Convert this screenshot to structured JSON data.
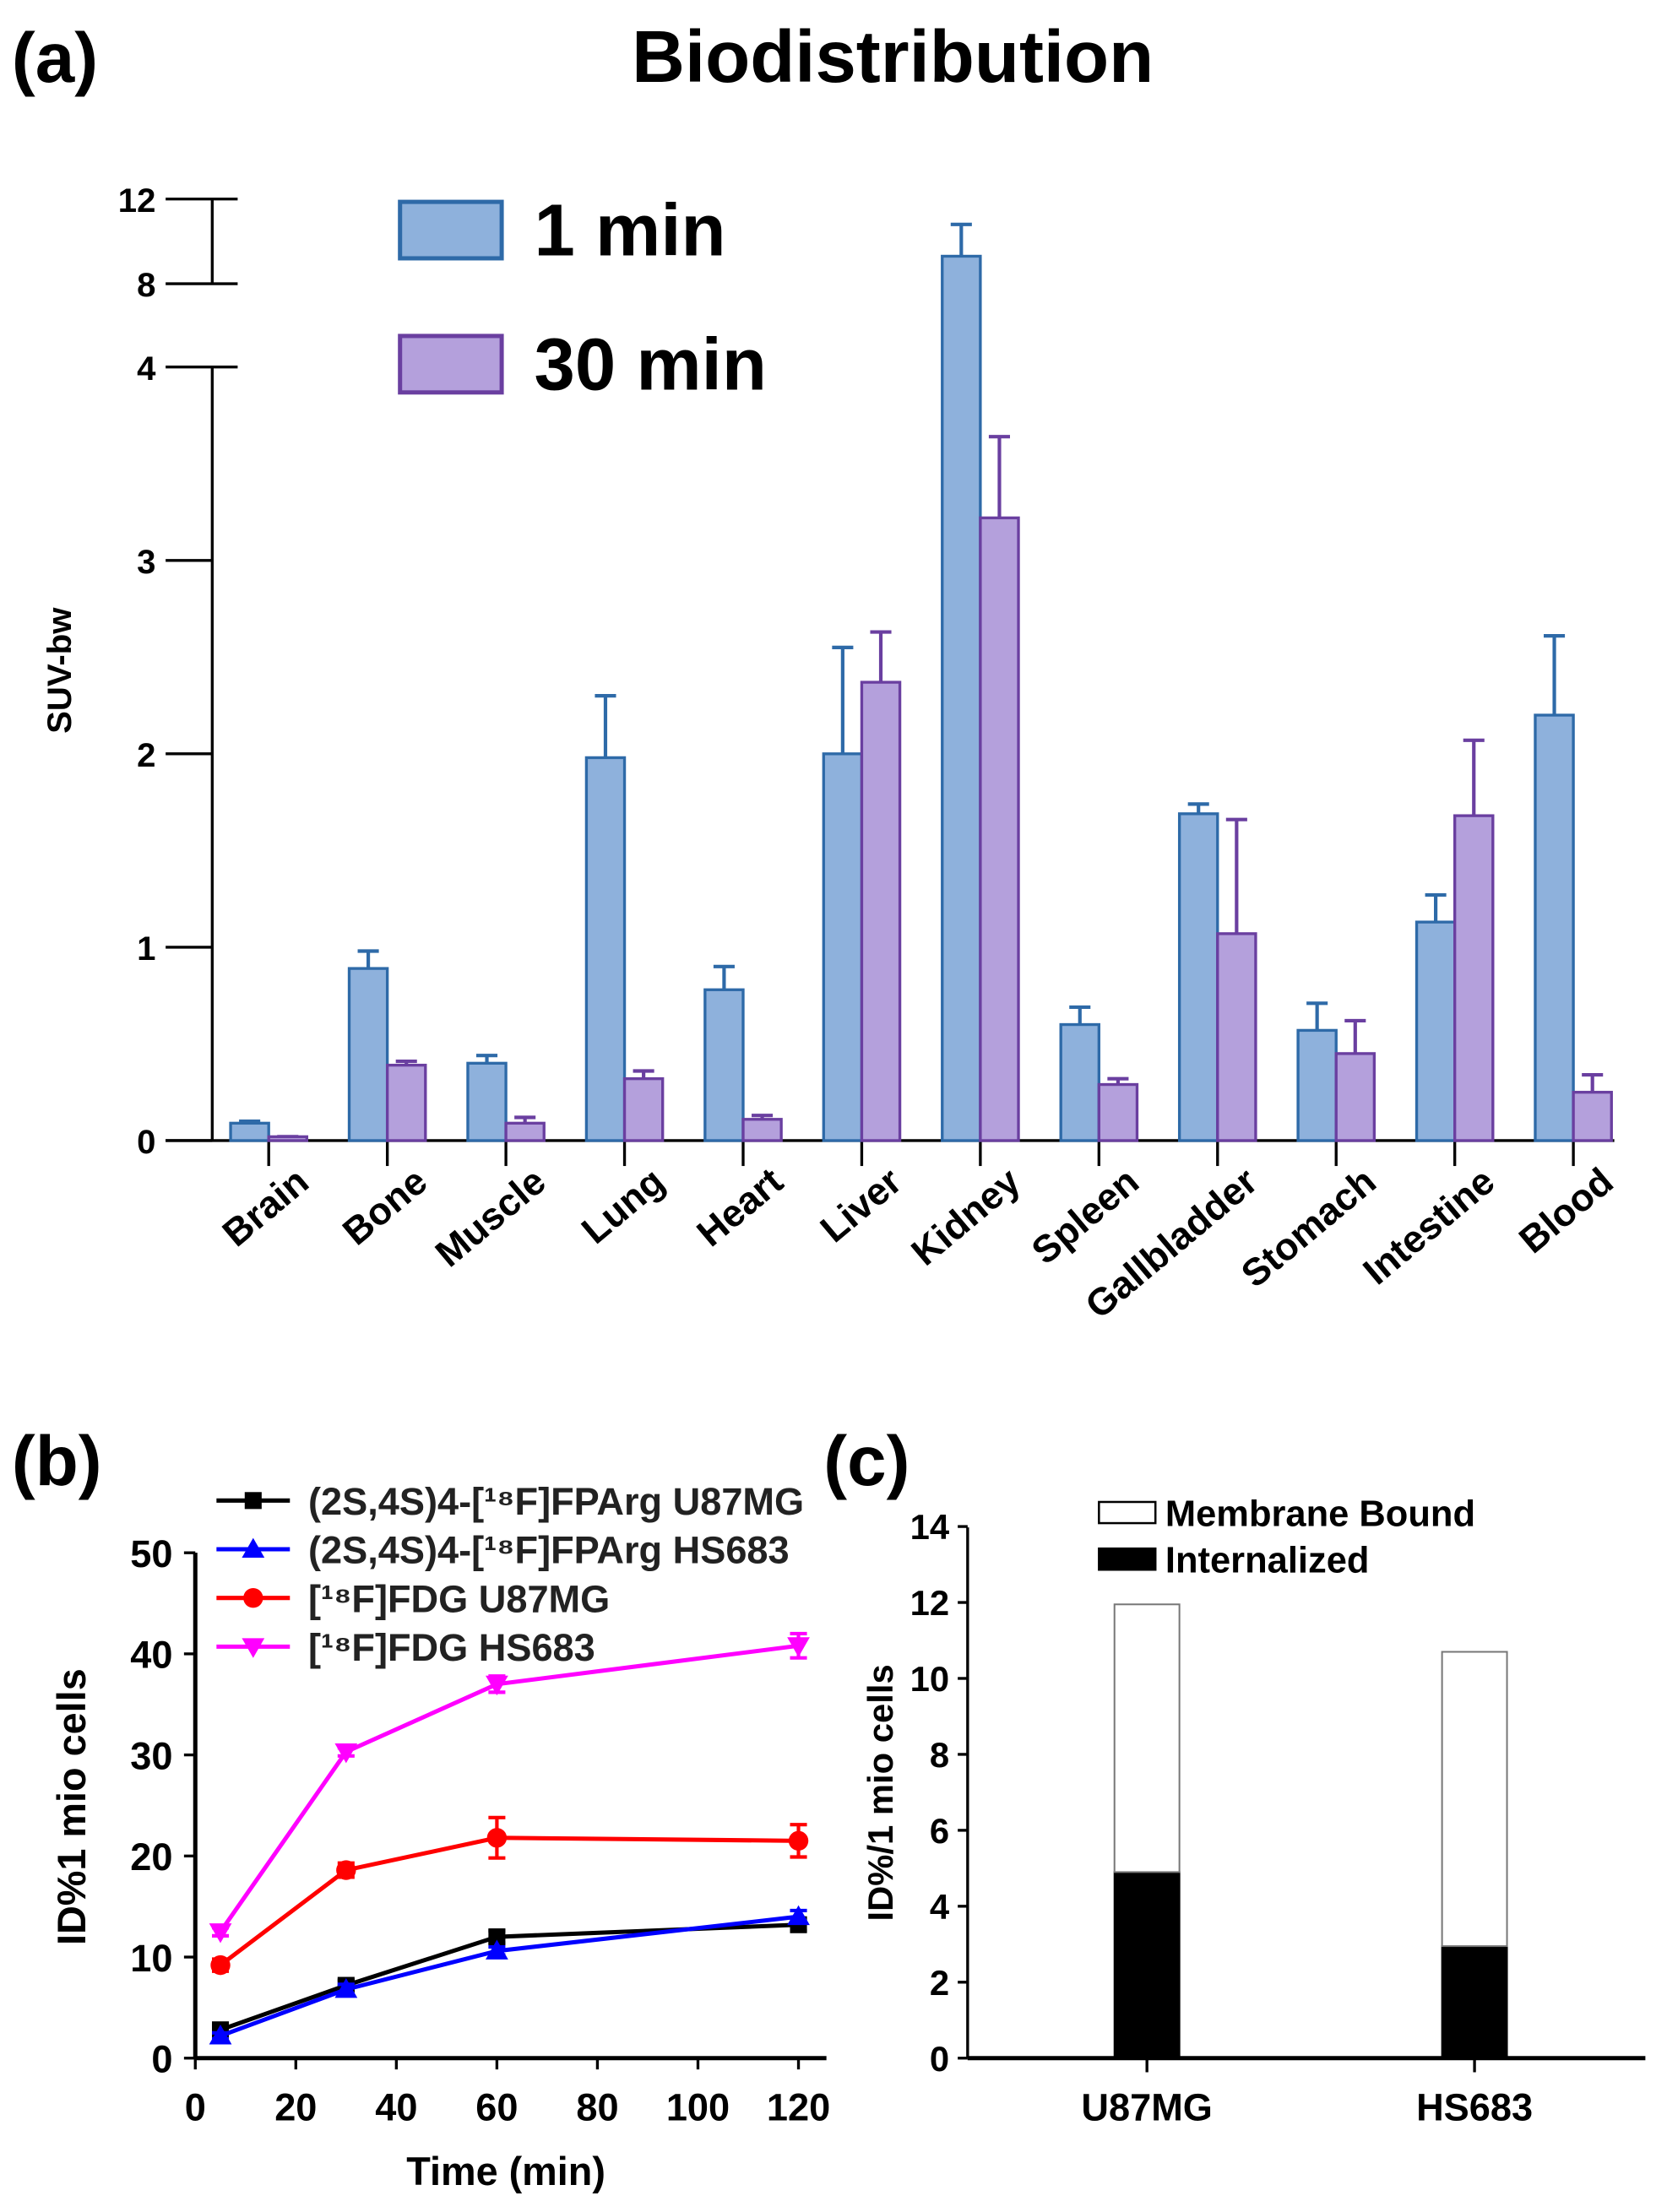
{
  "chart_data": [
    {
      "panel_label": "(a)",
      "type": "bar",
      "title": "Biodistribution",
      "ylabel": "SUV-bw",
      "xlabel": "",
      "y_ticks": [
        "0",
        "1",
        "2",
        "3",
        "4",
        "8",
        "12"
      ],
      "ylim_lower": [
        0,
        4
      ],
      "ylim_upper": [
        8,
        12
      ],
      "axis_break": [
        4,
        8
      ],
      "legend_position": "top-left",
      "categories": [
        "Brain",
        "Bone",
        "Muscle",
        "Lung",
        "Heart",
        "Liver",
        "Kidney",
        "Spleen",
        "Gallbladder",
        "Stomach",
        "Intestine",
        "Blood"
      ],
      "series": [
        {
          "name": "1 min",
          "color": "#8eb1dc",
          "edge": "#2e6aa8",
          "values": [
            0.09,
            0.89,
            0.4,
            1.98,
            0.78,
            2.0,
            9.3,
            0.6,
            1.69,
            0.57,
            1.13,
            2.2
          ],
          "error_upper": [
            0.1,
            0.98,
            0.44,
            2.3,
            0.9,
            2.55,
            10.8,
            0.69,
            1.74,
            0.71,
            1.27,
            2.61
          ]
        },
        {
          "name": "30 min",
          "color": "#b4a0dc",
          "edge": "#6a3fa0",
          "values": [
            0.02,
            0.39,
            0.09,
            0.32,
            0.11,
            2.37,
            3.22,
            0.29,
            1.07,
            0.45,
            1.68,
            0.25
          ],
          "error_upper": [
            0.02,
            0.41,
            0.12,
            0.36,
            0.13,
            2.63,
            3.64,
            0.32,
            1.66,
            0.62,
            2.07,
            0.34
          ]
        }
      ]
    },
    {
      "panel_label": "(b)",
      "type": "line",
      "xlabel": "Time (min)",
      "ylabel": "ID%1 mio cells",
      "xlim": [
        0,
        120
      ],
      "ylim": [
        0,
        50
      ],
      "x_ticks": [
        "0",
        "20",
        "40",
        "60",
        "80",
        "100",
        "120"
      ],
      "y_ticks": [
        "0",
        "10",
        "20",
        "30",
        "40",
        "50"
      ],
      "legend_position": "top-left",
      "x": [
        5,
        30,
        60,
        120
      ],
      "series": [
        {
          "name": "(2S,4S)4-[¹⁸F]FPArg U87MG",
          "color": "#000000",
          "marker": "square",
          "values": [
            2.8,
            7.2,
            12.0,
            13.2
          ],
          "error": [
            0.4,
            0.5,
            0.6,
            0.6
          ]
        },
        {
          "name": "(2S,4S)4-[¹⁸F]FPArg HS683",
          "color": "#0000ff",
          "marker": "triangle-up",
          "values": [
            2.2,
            6.8,
            10.6,
            14.0
          ],
          "error": [
            0.3,
            0.5,
            0.4,
            0.6
          ]
        },
        {
          "name": "[¹⁸F]FDG U87MG",
          "color": "#ff0000",
          "marker": "circle",
          "values": [
            9.2,
            18.6,
            21.8,
            21.5
          ],
          "error": [
            0.6,
            0.7,
            2.0,
            1.6
          ]
        },
        {
          "name": "[¹⁸F]FDG HS683",
          "color": "#ff00ff",
          "marker": "triangle-down",
          "values": [
            12.5,
            30.3,
            37.0,
            40.8
          ],
          "error": [
            0.4,
            0.4,
            0.8,
            1.2
          ]
        }
      ]
    },
    {
      "panel_label": "(c)",
      "type": "bar",
      "stacked": true,
      "xlabel": "",
      "ylabel": "ID%/1 mio cells",
      "ylim": [
        0,
        14
      ],
      "y_ticks": [
        "0",
        "2",
        "4",
        "6",
        "8",
        "10",
        "12",
        "14"
      ],
      "legend_position": "top",
      "categories": [
        "U87MG",
        "HS683"
      ],
      "series": [
        {
          "name": "Internalized",
          "color": "#000000",
          "values": [
            4.9,
            2.95
          ]
        },
        {
          "name": "Membrane Bound",
          "color": "#ffffff",
          "values": [
            7.05,
            7.75
          ]
        }
      ]
    }
  ]
}
